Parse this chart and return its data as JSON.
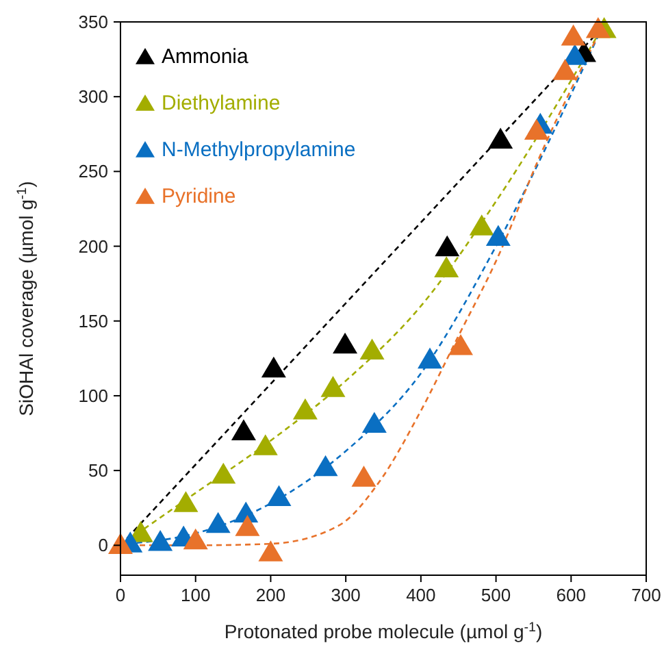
{
  "chart_data": {
    "type": "scatter",
    "xlabel": "Protonated probe molecule (µmol g$^{-1}$)",
    "ylabel": "SiOHAl coverage (µmol g$^{-1}$)",
    "xlim": [
      0,
      700
    ],
    "ylim": [
      -20,
      350
    ],
    "xticks": [
      0,
      100,
      200,
      300,
      400,
      500,
      600,
      700
    ],
    "yticks": [
      0,
      50,
      100,
      150,
      200,
      250,
      300,
      350
    ],
    "grid": false,
    "legend": "top left",
    "marker": "triangle",
    "series": [
      {
        "type": "line",
        "color": "#000000",
        "line_style": "dashed",
        "marker": "none",
        "x": [
          0,
          630
        ],
        "values": [
          0,
          340
        ]
      },
      {
        "type": "line",
        "color": "#a3ad00",
        "line_style": "dashed",
        "marker": "none",
        "x": [
          0,
          100,
          200,
          300,
          400,
          500,
          640
        ],
        "values": [
          0,
          35,
          70,
          110,
          160,
          230,
          345
        ]
      },
      {
        "type": "line",
        "color": "#0a6fc2",
        "line_style": "dashed",
        "marker": "none",
        "x": [
          9,
          100,
          200,
          300,
          400,
          500,
          640
        ],
        "values": [
          1,
          8,
          28,
          63,
          115,
          200,
          345
        ]
      },
      {
        "type": "line",
        "color": "#e8722a",
        "line_style": "dashed",
        "marker": "none",
        "x": [
          0,
          100,
          200,
          290,
          344,
          400,
          450,
          500,
          560,
          640
        ],
        "values": [
          0,
          0,
          1,
          13,
          42,
          90,
          140,
          190,
          262,
          345
        ]
      },
      {
        "name": "Ammonia",
        "color": "#000000",
        "x": [
          164,
          204,
          299,
          435,
          506,
          617
        ],
        "values": [
          76,
          118,
          134,
          199,
          271,
          329
        ]
      },
      {
        "name": "Diethylamine",
        "color": "#a3ad00",
        "x": [
          27,
          87,
          137,
          193,
          246,
          283,
          335,
          434,
          481,
          644
        ],
        "values": [
          8,
          28,
          47,
          66,
          90,
          105,
          130,
          185,
          213,
          345
        ]
      },
      {
        "name": "N-Methylpropylamine",
        "color": "#0a6fc2",
        "x": [
          13,
          53,
          84,
          130,
          167,
          211,
          273,
          338,
          412,
          503,
          559,
          605
        ],
        "values": [
          1,
          2,
          5,
          14,
          21,
          32,
          52,
          81,
          124,
          206,
          281,
          327
        ]
      },
      {
        "name": "Pyridine",
        "color": "#e8722a",
        "x": [
          0,
          100,
          169,
          200,
          324,
          453,
          554,
          592,
          603,
          636
        ],
        "values": [
          0,
          3,
          12,
          -5,
          45,
          133,
          277,
          317,
          340,
          345
        ]
      }
    ]
  }
}
